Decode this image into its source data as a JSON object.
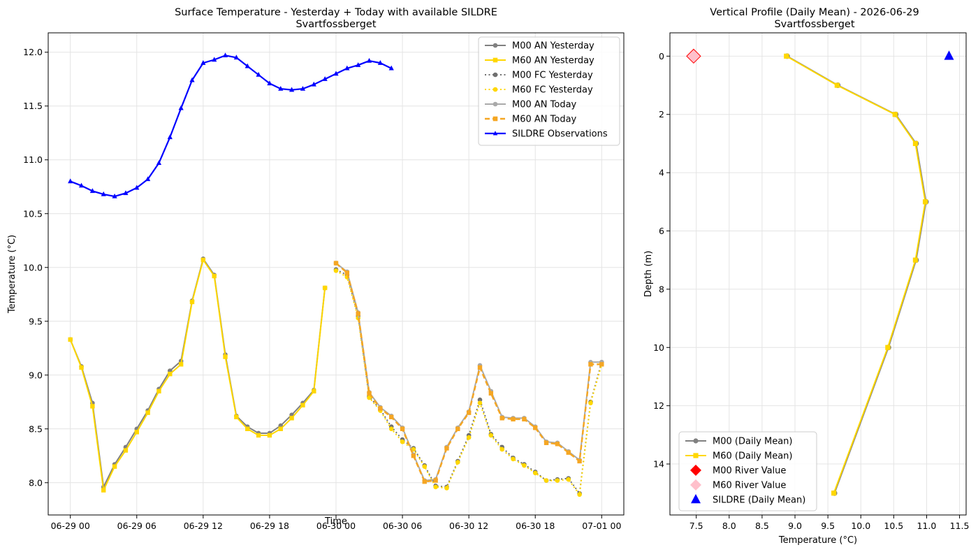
{
  "chart_data": [
    {
      "type": "line",
      "title": "Surface Temperature - Yesterday + Today with available SILDRE",
      "subtitle": "Svartfossberget",
      "xlabel": "Time",
      "ylabel": "Temperature (°C)",
      "xlim_hours": [
        -2.0,
        50.0
      ],
      "ylim": [
        7.7,
        12.18
      ],
      "x_unit": "hours after 2026-06-29 00:00",
      "xticks": [
        {
          "x": 0,
          "label": "06-29 00"
        },
        {
          "x": 6,
          "label": "06-29 06"
        },
        {
          "x": 12,
          "label": "06-29 12"
        },
        {
          "x": 18,
          "label": "06-29 18"
        },
        {
          "x": 24,
          "label": "06-30 00"
        },
        {
          "x": 30,
          "label": "06-30 06"
        },
        {
          "x": 36,
          "label": "06-30 12"
        },
        {
          "x": 42,
          "label": "06-30 18"
        },
        {
          "x": 48,
          "label": "07-01 00"
        }
      ],
      "yticks": [
        8.0,
        8.5,
        9.0,
        9.5,
        10.0,
        10.5,
        11.0,
        11.5,
        12.0
      ],
      "grid": true,
      "legend_position": "top-right",
      "series": [
        {
          "name": "M00 AN Yesterday",
          "color": "#808080",
          "dash": "solid",
          "marker": "circle",
          "width": 2,
          "x": [
            0,
            1,
            2,
            3,
            4,
            5,
            6,
            7,
            8,
            9,
            10,
            11,
            12,
            13,
            14,
            15,
            16,
            17,
            18,
            19,
            20,
            21,
            22,
            23
          ],
          "y": [
            9.33,
            9.08,
            8.74,
            7.96,
            8.17,
            8.33,
            8.5,
            8.67,
            8.87,
            9.04,
            9.13,
            9.69,
            10.08,
            9.93,
            9.19,
            8.62,
            8.52,
            8.46,
            8.46,
            8.53,
            8.63,
            8.74,
            8.86,
            9.81
          ]
        },
        {
          "name": "M60 AN Yesterday",
          "color": "#ffd700",
          "dash": "solid",
          "marker": "square",
          "width": 2,
          "x": [
            0,
            1,
            2,
            3,
            4,
            5,
            6,
            7,
            8,
            9,
            10,
            11,
            12,
            13,
            14,
            15,
            16,
            17,
            18,
            19,
            20,
            21,
            22,
            23
          ],
          "y": [
            9.33,
            9.07,
            8.71,
            7.93,
            8.15,
            8.3,
            8.47,
            8.65,
            8.85,
            9.01,
            9.1,
            9.68,
            10.07,
            9.92,
            9.17,
            8.61,
            8.5,
            8.44,
            8.44,
            8.5,
            8.6,
            8.72,
            8.85,
            9.81
          ]
        },
        {
          "name": "M00 FC Yesterday",
          "color": "#707070",
          "dash": "dotted",
          "marker": "circle",
          "width": 2,
          "x": [
            24,
            25,
            26,
            27,
            28,
            29,
            30,
            31,
            32,
            33,
            34,
            35,
            36,
            37,
            38,
            39,
            40,
            41,
            42,
            43,
            44,
            45,
            46,
            47,
            48
          ],
          "y": [
            9.98,
            9.93,
            9.55,
            8.8,
            8.68,
            8.52,
            8.4,
            8.32,
            8.16,
            7.97,
            7.96,
            8.2,
            8.44,
            8.77,
            8.45,
            8.33,
            8.23,
            8.17,
            8.1,
            8.02,
            8.03,
            8.04,
            7.9,
            8.75,
            9.12
          ]
        },
        {
          "name": "M60 FC Yesterday",
          "color": "#ffd700",
          "dash": "dotted",
          "marker": "circle",
          "width": 2,
          "x": [
            24,
            25,
            26,
            27,
            28,
            29,
            30,
            31,
            32,
            33,
            34,
            35,
            36,
            37,
            38,
            39,
            40,
            41,
            42,
            43,
            44,
            45,
            46,
            47,
            48
          ],
          "y": [
            9.97,
            9.91,
            9.53,
            8.79,
            8.67,
            8.5,
            8.38,
            8.31,
            8.15,
            7.96,
            7.95,
            8.19,
            8.42,
            8.74,
            8.44,
            8.31,
            8.22,
            8.16,
            8.09,
            8.02,
            8.02,
            8.03,
            7.89,
            8.74,
            9.1
          ]
        },
        {
          "name": "M00 AN Today",
          "color": "#a9a9a9",
          "dash": "solid",
          "marker": "circle",
          "width": 2,
          "x": [
            24,
            25,
            26,
            27,
            28,
            29,
            30,
            31,
            32,
            33,
            34,
            35,
            36,
            37,
            38,
            39,
            40,
            41,
            42,
            43,
            44,
            45,
            46,
            47,
            48
          ],
          "y": [
            10.04,
            9.96,
            9.58,
            8.84,
            8.7,
            8.62,
            8.51,
            8.26,
            8.02,
            8.03,
            8.33,
            8.51,
            8.66,
            9.09,
            8.85,
            8.61,
            8.6,
            8.6,
            8.52,
            8.38,
            8.37,
            8.29,
            8.21,
            9.12,
            9.12
          ]
        },
        {
          "name": "M60 AN Today",
          "color": "#f5a623",
          "dash": "dashed",
          "marker": "square",
          "width": 2.5,
          "x": [
            24,
            25,
            26,
            27,
            28,
            29,
            30,
            31,
            32,
            33,
            34,
            35,
            36,
            37,
            38,
            39,
            40,
            41,
            42,
            43,
            44,
            45,
            46,
            47,
            48
          ],
          "y": [
            10.04,
            9.95,
            9.57,
            8.83,
            8.69,
            8.61,
            8.5,
            8.25,
            8.01,
            8.02,
            8.32,
            8.5,
            8.65,
            9.07,
            8.83,
            8.6,
            8.59,
            8.59,
            8.51,
            8.37,
            8.36,
            8.28,
            8.2,
            9.1,
            9.1
          ]
        },
        {
          "name": "SILDRE Observations",
          "color": "#0000ff",
          "dash": "solid",
          "marker": "triangle",
          "width": 2.2,
          "x": [
            0,
            1,
            2,
            3,
            4,
            5,
            6,
            7,
            8,
            9,
            10,
            11,
            12,
            13,
            14,
            15,
            16,
            17,
            18,
            19,
            20,
            21,
            22,
            23,
            24,
            25,
            26,
            27,
            28,
            29,
            30
          ],
          "y": [
            10.8,
            10.76,
            10.71,
            10.68,
            10.66,
            10.69,
            10.74,
            10.82,
            10.97,
            11.21,
            11.48,
            11.74,
            11.9,
            11.93,
            11.97,
            11.95,
            11.87,
            11.79,
            11.71,
            11.66,
            11.65,
            11.66,
            11.7,
            11.75,
            11.8,
            11.85,
            11.88,
            11.92,
            11.9,
            11.85,
            null
          ]
        }
      ]
    },
    {
      "type": "line",
      "title": "Vertical Profile (Daily Mean) - 2026-06-29",
      "subtitle": "Svartfossberget",
      "xlabel": "Temperature (°C)",
      "ylabel": "Depth (m)",
      "xlim": [
        7.1,
        11.6
      ],
      "ylim": [
        15.75,
        -0.8
      ],
      "y_inverted": true,
      "xticks": [
        7.5,
        8.0,
        8.5,
        9.0,
        9.5,
        10.0,
        10.5,
        11.0,
        11.5
      ],
      "yticks": [
        0,
        2,
        4,
        6,
        8,
        10,
        12,
        14
      ],
      "grid": true,
      "legend_position": "bottom-left",
      "series": [
        {
          "name": "M00 (Daily Mean)",
          "color": "#808080",
          "marker": "circle",
          "depth": [
            0,
            1,
            2,
            3,
            5,
            7,
            10,
            15
          ],
          "temp": [
            8.88,
            9.65,
            10.53,
            10.84,
            10.99,
            10.84,
            10.42,
            9.6
          ]
        },
        {
          "name": "M60 (Daily Mean)",
          "color": "#ffd700",
          "marker": "square",
          "depth": [
            0,
            1,
            2,
            3,
            5,
            7,
            10,
            15
          ],
          "temp": [
            8.87,
            9.64,
            10.52,
            10.83,
            10.98,
            10.83,
            10.41,
            9.59
          ]
        }
      ],
      "points": [
        {
          "name": "M00 River Value",
          "color": "#ff0000",
          "marker": "diamond",
          "temp": 7.46,
          "depth": 0
        },
        {
          "name": "M60 River Value",
          "color": "#ffc0cb",
          "marker": "diamond",
          "temp": 7.46,
          "depth": 0
        },
        {
          "name": "SILDRE (Daily Mean)",
          "color": "#0000ff",
          "marker": "triangle",
          "temp": 11.34,
          "depth": 0
        }
      ]
    }
  ]
}
